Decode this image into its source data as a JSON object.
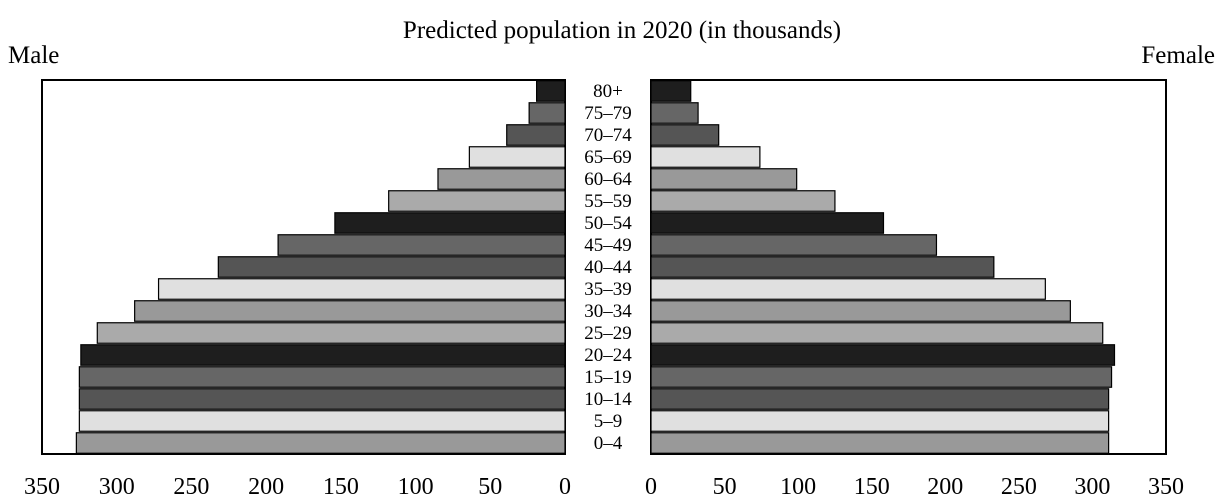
{
  "chart_data": {
    "type": "bar",
    "orientation": "horizontal",
    "layout": "population-pyramid",
    "title": "Predicted population in 2020 (in thousands)",
    "left_label": "Male",
    "right_label": "Female",
    "categories": [
      "0–4",
      "5–9",
      "10–14",
      "15–19",
      "20–24",
      "25–29",
      "30–34",
      "35–39",
      "40–44",
      "45–49",
      "50–54",
      "55–59",
      "60–64",
      "65–69",
      "70–74",
      "75–79",
      "80+"
    ],
    "series": [
      {
        "name": "Male",
        "values": [
          327,
          325,
          325,
          325,
          324,
          313,
          288,
          272,
          232,
          192,
          154,
          118,
          85,
          64,
          39,
          24,
          19
        ]
      },
      {
        "name": "Female",
        "values": [
          311,
          311,
          311,
          313,
          315,
          307,
          285,
          268,
          233,
          194,
          158,
          125,
          99,
          74,
          46,
          32,
          27
        ]
      }
    ],
    "bar_colors": [
      "#999999",
      "#e0e0e0",
      "#555555",
      "#666666",
      "#1e1e1e",
      "#aaaaaa",
      "#999999",
      "#e0e0e0",
      "#555555",
      "#666666",
      "#1e1e1e",
      "#aaaaaa",
      "#999999",
      "#e0e0e0",
      "#555555",
      "#666666",
      "#1e1e1e"
    ],
    "xlim": [
      0,
      350
    ],
    "x_ticks": [
      350,
      300,
      250,
      200,
      150,
      100,
      50,
      0
    ],
    "x_tick_labels": [
      "350",
      "300",
      "250",
      "200",
      "150",
      "100",
      "50",
      "0"
    ],
    "grid": false
  }
}
